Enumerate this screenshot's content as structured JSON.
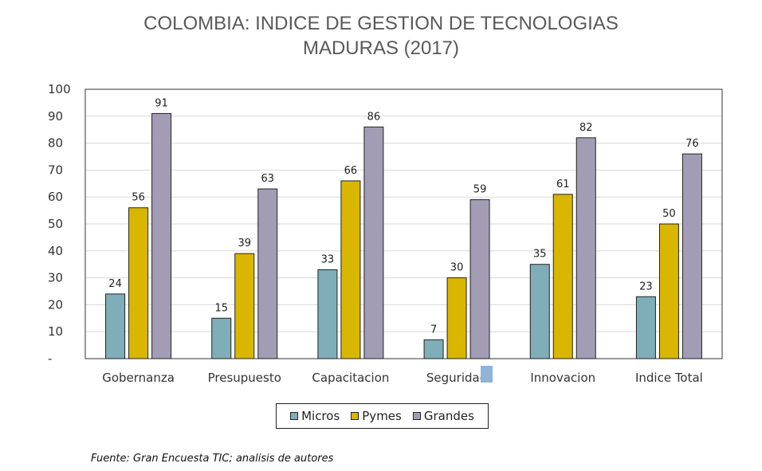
{
  "title_line1": "COLOMBIA: INDICE DE GESTION DE TECNOLOGIAS",
  "title_line2": "MADURAS (2017)",
  "chart_data": {
    "type": "bar",
    "title": "COLOMBIA: INDICE DE GESTION DE TECNOLOGIAS MADURAS (2017)",
    "categories": [
      "Gobernanza",
      "Presupuesto",
      "Capacitacion",
      "Seguridad",
      "Innovacion",
      "Indice Total"
    ],
    "series": [
      {
        "name": "Micros",
        "color": "#7fadb8",
        "values": [
          24,
          15,
          33,
          7,
          35,
          23
        ]
      },
      {
        "name": "Pymes",
        "color": "#d9b600",
        "values": [
          56,
          39,
          66,
          30,
          61,
          50
        ]
      },
      {
        "name": "Grandes",
        "color": "#a29db5",
        "values": [
          91,
          63,
          86,
          59,
          82,
          76
        ]
      }
    ],
    "ylim": [
      0,
      100
    ],
    "yticks": [
      "-",
      "10",
      "20",
      "30",
      "40",
      "50",
      "60",
      "70",
      "80",
      "90",
      "100"
    ],
    "xlabel": "",
    "ylabel": "",
    "grid": true,
    "legend": "bottom"
  },
  "source": "Fuente: Gran Encuesta TIC; analisis de autores"
}
